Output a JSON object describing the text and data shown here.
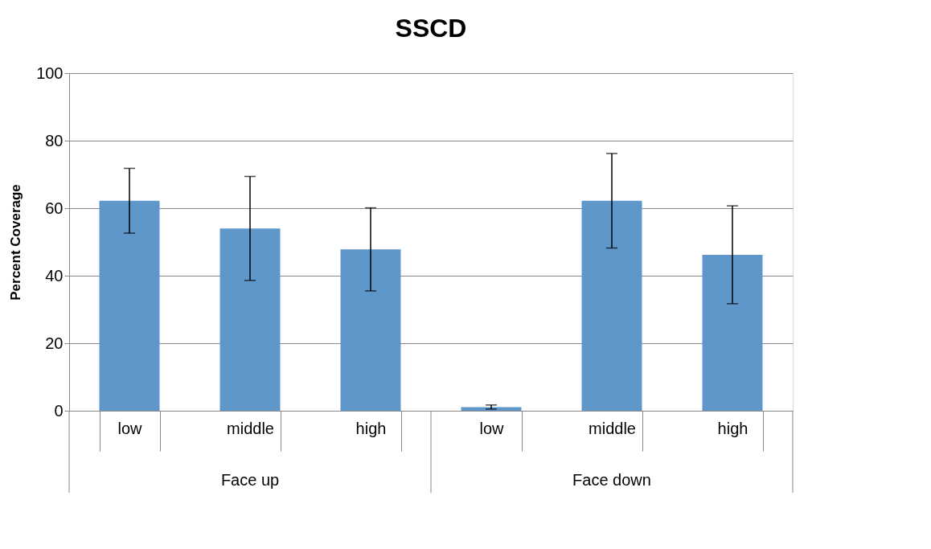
{
  "chart_data": {
    "type": "bar",
    "title": "SSCD",
    "ylabel": "Percent Coverage",
    "categories": [
      "low",
      "middle",
      "high",
      "low",
      "middle",
      "high"
    ],
    "values": [
      62.2,
      54.0,
      47.8,
      1.1,
      62.2,
      46.2
    ],
    "errors": [
      9.6,
      15.4,
      12.3,
      0.6,
      14.0,
      14.5
    ],
    "color": "#6097cb",
    "annotations": [
      "Face up",
      "Face down"
    ],
    "ylim": [
      0,
      100
    ],
    "yticks": [
      0,
      20,
      40,
      60,
      80,
      100
    ],
    "grid": "y"
  }
}
